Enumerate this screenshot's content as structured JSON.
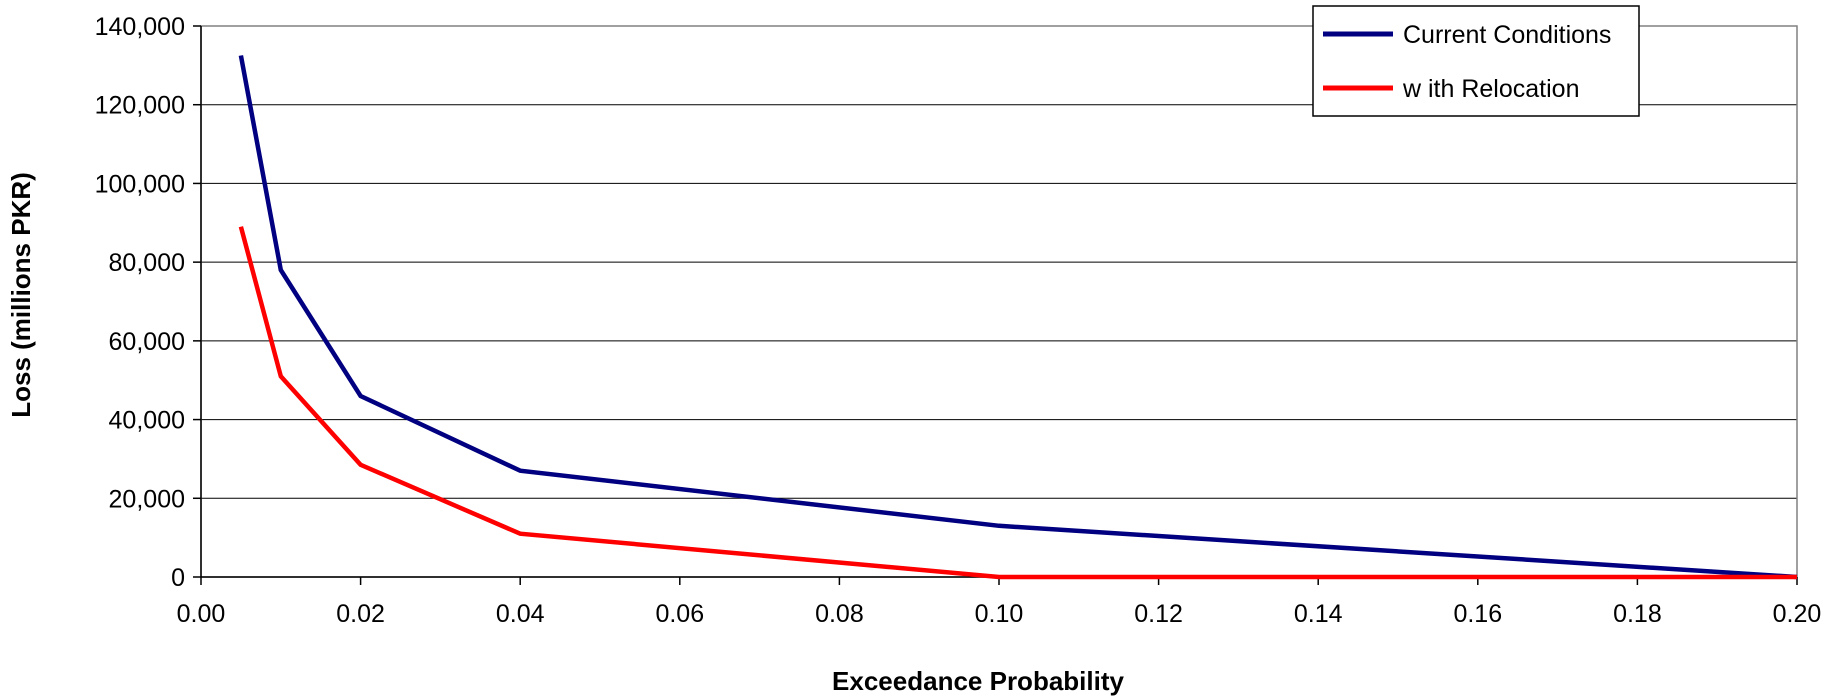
{
  "chart_data": {
    "type": "line",
    "title": "",
    "xlabel": "Exceedance Probability",
    "ylabel": "Loss (millions PKR)",
    "xlim": [
      0,
      0.2
    ],
    "ylim": [
      0,
      140000
    ],
    "x_ticks": [
      "0.00",
      "0.02",
      "0.04",
      "0.06",
      "0.08",
      "0.10",
      "0.12",
      "0.14",
      "0.16",
      "0.18",
      "0.20"
    ],
    "y_ticks": [
      "0",
      "20,000",
      "40,000",
      "60,000",
      "80,000",
      "100,000",
      "120,000",
      "140,000"
    ],
    "grid": "horizontal",
    "legend_position": "top-right",
    "series": [
      {
        "name": "Current Conditions",
        "color": "#000080",
        "x": [
          0.005,
          0.01,
          0.02,
          0.04,
          0.1,
          0.2
        ],
        "y": [
          132500,
          78000,
          46000,
          27000,
          13000,
          0
        ]
      },
      {
        "name": "w ith Relocation",
        "color": "#ff0000",
        "x": [
          0.005,
          0.01,
          0.02,
          0.04,
          0.1,
          0.2
        ],
        "y": [
          89000,
          51000,
          28500,
          11000,
          0,
          0
        ]
      }
    ]
  }
}
